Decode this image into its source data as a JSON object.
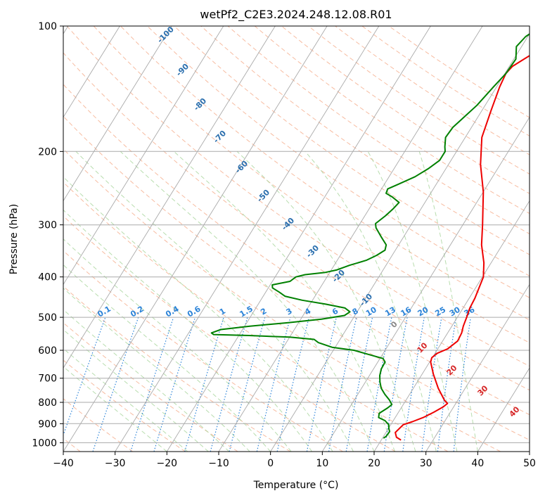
{
  "chart_data": {
    "type": "line",
    "title": "wetPf2_C2E3.2024.248.12.08.R01",
    "xlabel": "Temperature (°C)",
    "ylabel": "Pressure (hPa)",
    "xlim": [
      -40,
      50
    ],
    "ylim": [
      1050,
      100
    ],
    "yscale": "log",
    "x_ticks": [
      -40,
      -30,
      -20,
      -10,
      0,
      10,
      20,
      30,
      40,
      50
    ],
    "y_ticks": [
      1000,
      900,
      800,
      700,
      600,
      500,
      400,
      300,
      200,
      100
    ],
    "colors": {
      "temperature": "#ee0000",
      "dewpoint": "#008000",
      "isotherm": "#aaaaaa",
      "dry_adiabat": "#f4a582",
      "moist_adiabat": "#a6d49a",
      "mixing_ratio": "#2b83d8",
      "iso_label_blue": "#2b6fae",
      "iso_label_red": "#d62728",
      "iso_label_gray": "#888888"
    },
    "isotherm_labels": [
      "-100",
      "-90",
      "-80",
      "-70",
      "-60",
      "-50",
      "-40",
      "-30",
      "-20",
      "-10",
      "0",
      "10",
      "20",
      "30",
      "40"
    ],
    "mixing_ratio_labels": [
      "0.1",
      "0.2",
      "0.4",
      "0.6",
      "1",
      "1.5",
      "2",
      "3",
      "4",
      "6",
      "8",
      "10",
      "13",
      "16",
      "20",
      "25",
      "30",
      "36"
    ],
    "series": [
      {
        "points": [
          [
            23.8,
            985
          ],
          [
            22.6,
            970
          ],
          [
            21.8,
            945
          ],
          [
            22.4,
            905
          ],
          [
            23.8,
            890
          ],
          [
            25.4,
            870
          ],
          [
            26.8,
            845
          ],
          [
            28.0,
            820
          ],
          [
            28.4,
            805
          ],
          [
            27.4,
            790
          ],
          [
            24.8,
            740
          ],
          [
            22.2,
            685
          ],
          [
            20.2,
            640
          ],
          [
            19.9,
            625
          ],
          [
            20.4,
            610
          ],
          [
            21.9,
            595
          ],
          [
            22.9,
            570
          ],
          [
            22.7,
            545
          ],
          [
            22.2,
            525
          ],
          [
            21.8,
            500
          ],
          [
            21.3,
            475
          ],
          [
            21.1,
            450
          ],
          [
            20.2,
            400
          ],
          [
            18.6,
            370
          ],
          [
            16.0,
            335
          ],
          [
            13.8,
            300
          ],
          [
            10.0,
            250
          ],
          [
            6.2,
            215
          ],
          [
            3.2,
            185
          ],
          [
            1.8,
            160
          ],
          [
            0.6,
            140
          ],
          [
            0.2,
            130
          ],
          [
            0.6,
            125
          ],
          [
            2.0,
            120
          ],
          [
            4.4,
            112
          ],
          [
            6.0,
            105
          ],
          [
            7.6,
            100
          ]
        ]
      },
      {
        "points": [
          [
            20.2,
            975
          ],
          [
            20.5,
            965
          ],
          [
            20.6,
            940
          ],
          [
            20.1,
            925
          ],
          [
            19.6,
            905
          ],
          [
            18.4,
            885
          ],
          [
            16.8,
            870
          ],
          [
            16.4,
            850
          ],
          [
            17.4,
            825
          ],
          [
            17.8,
            810
          ],
          [
            16.8,
            790
          ],
          [
            15.2,
            765
          ],
          [
            13.8,
            740
          ],
          [
            12.8,
            715
          ],
          [
            12.0,
            690
          ],
          [
            11.5,
            665
          ],
          [
            11.4,
            640
          ],
          [
            10.6,
            628
          ],
          [
            7.6,
            615
          ],
          [
            4.0,
            600
          ],
          [
            -0.6,
            590
          ],
          [
            -3.8,
            575
          ],
          [
            -5.0,
            565
          ],
          [
            -10.0,
            558
          ],
          [
            -18.0,
            553
          ],
          [
            -25.0,
            550
          ],
          [
            -25.6,
            545
          ],
          [
            -24.2,
            535
          ],
          [
            -19.0,
            525
          ],
          [
            -12.0,
            515
          ],
          [
            -6.0,
            505
          ],
          [
            -2.0,
            495
          ],
          [
            -1.4,
            485
          ],
          [
            -2.8,
            475
          ],
          [
            -7.0,
            465
          ],
          [
            -12.0,
            455
          ],
          [
            -15.8,
            445
          ],
          [
            -17.4,
            435
          ],
          [
            -19.2,
            425
          ],
          [
            -19.6,
            418
          ],
          [
            -16.6,
            410
          ],
          [
            -16.0,
            400
          ],
          [
            -14.5,
            395
          ],
          [
            -10.8,
            390
          ],
          [
            -9.0,
            385
          ],
          [
            -7.0,
            375
          ],
          [
            -4.4,
            365
          ],
          [
            -3.0,
            355
          ],
          [
            -2.0,
            345
          ],
          [
            -2.4,
            335
          ],
          [
            -4.4,
            320
          ],
          [
            -6.4,
            305
          ],
          [
            -7.0,
            298
          ],
          [
            -6.0,
            285
          ],
          [
            -5.4,
            275
          ],
          [
            -5.0,
            265
          ],
          [
            -7.0,
            257
          ],
          [
            -8.6,
            252
          ],
          [
            -8.8,
            246
          ],
          [
            -7.4,
            240
          ],
          [
            -5.0,
            230
          ],
          [
            -3.4,
            220
          ],
          [
            -2.2,
            210
          ],
          [
            -2.2,
            200
          ],
          [
            -2.8,
            195
          ],
          [
            -3.8,
            185
          ],
          [
            -3.6,
            175
          ],
          [
            -2.6,
            165
          ],
          [
            -1.6,
            155
          ],
          [
            -0.6,
            140
          ],
          [
            0.2,
            130
          ],
          [
            0.4,
            120
          ],
          [
            -1.0,
            112
          ],
          [
            -0.4,
            106
          ],
          [
            0.8,
            102
          ],
          [
            1.4,
            100
          ]
        ]
      }
    ]
  }
}
